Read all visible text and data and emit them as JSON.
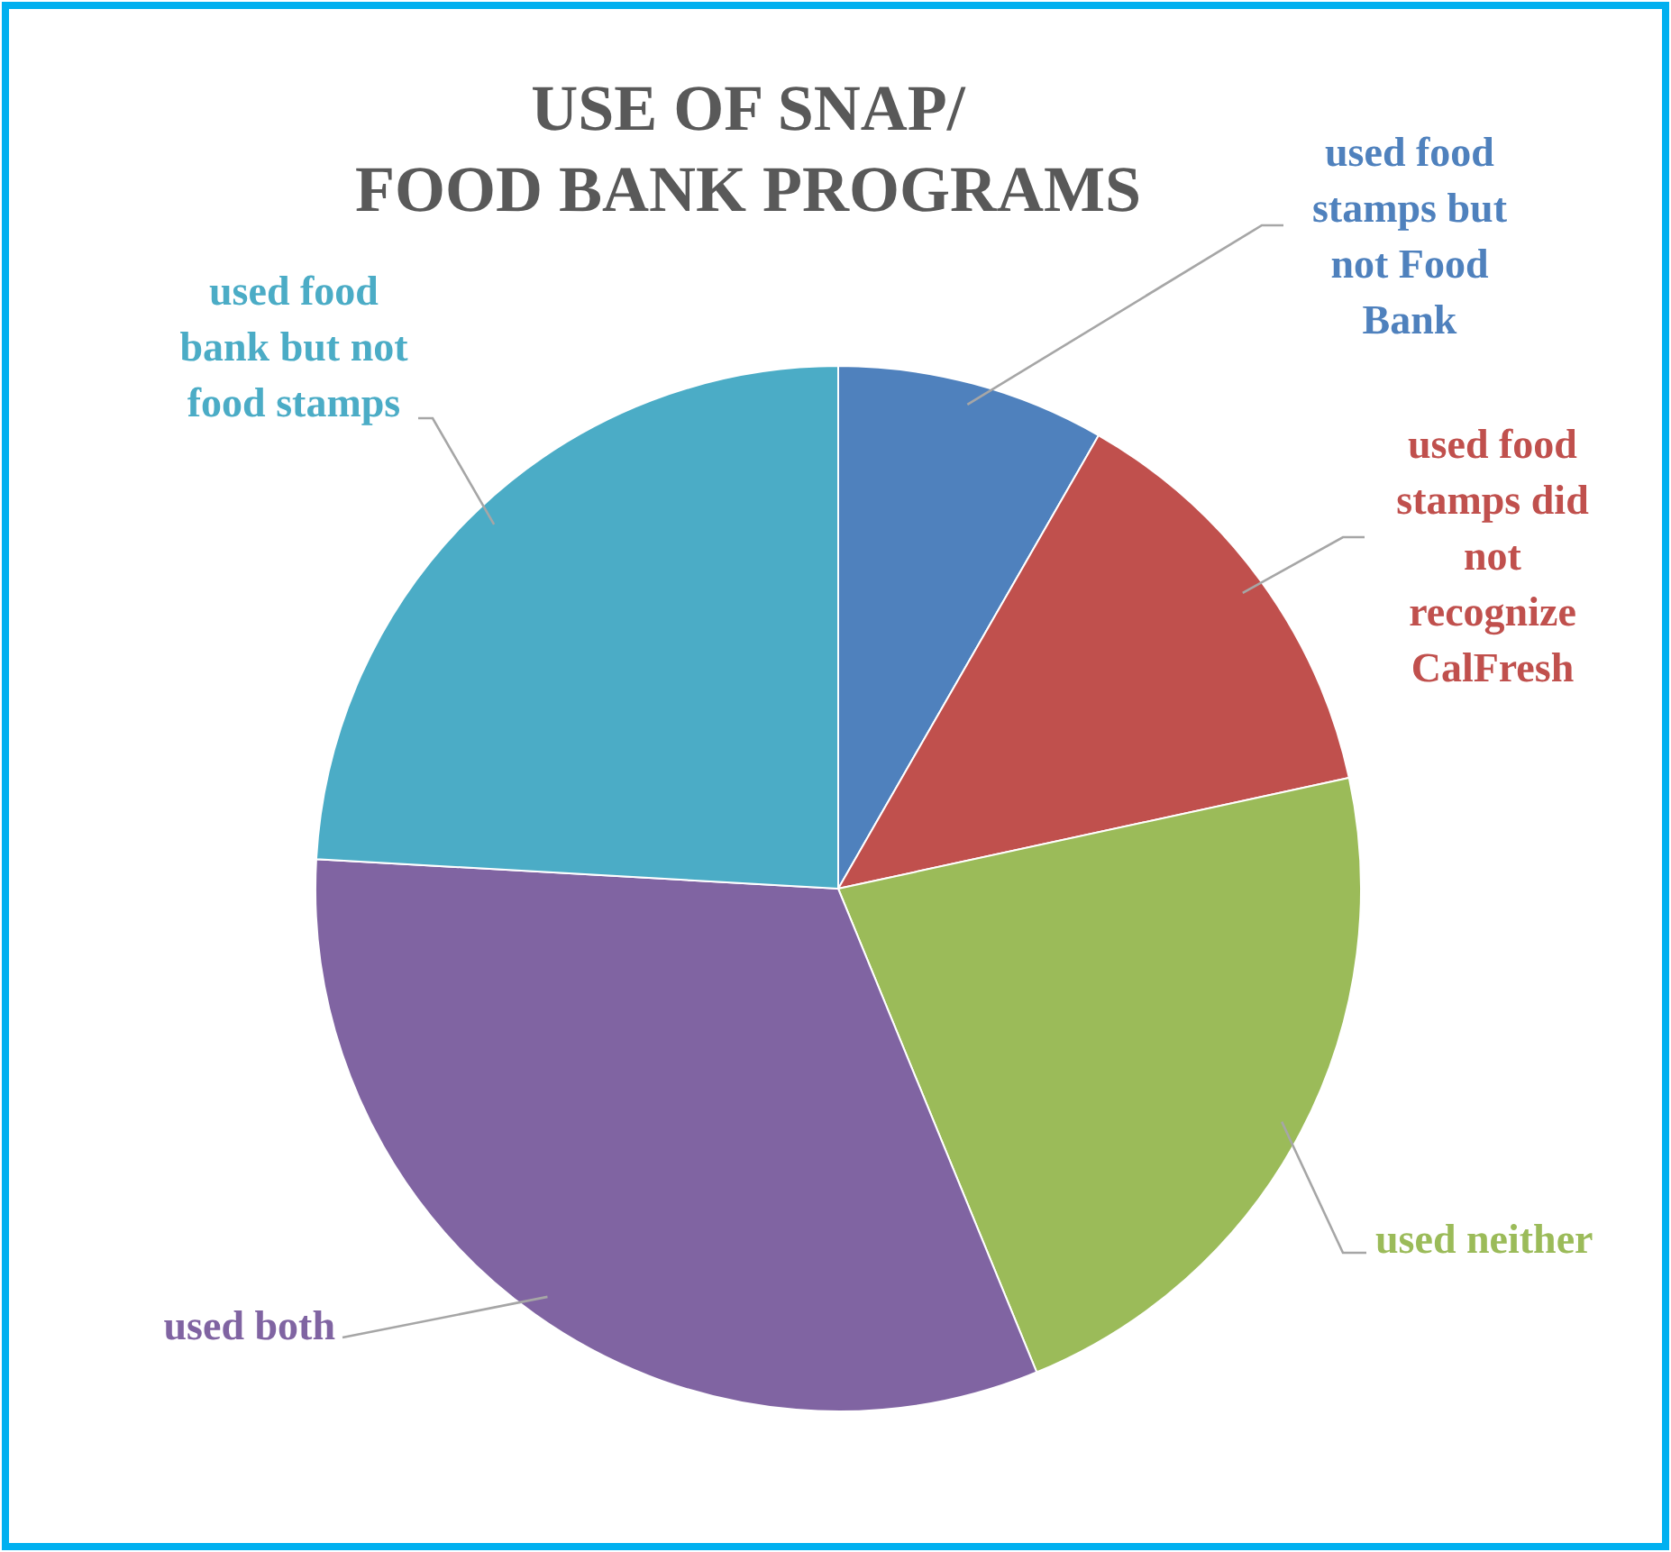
{
  "chart_data": {
    "type": "pie",
    "title": "USE OF SNAP/ FOOD BANK PROGRAMS",
    "categories": [
      "used food stamps but not Food Bank",
      "used food stamps did not recognize CalFresh",
      "used neither",
      "used both",
      "used food bank but not food stamps"
    ],
    "values": [
      8.3,
      13.3,
      22.2,
      32.1,
      24.1
    ],
    "colors": [
      "#4f81bd",
      "#c0504d",
      "#9bbb59",
      "#8064a2",
      "#4bacc6"
    ]
  }
}
